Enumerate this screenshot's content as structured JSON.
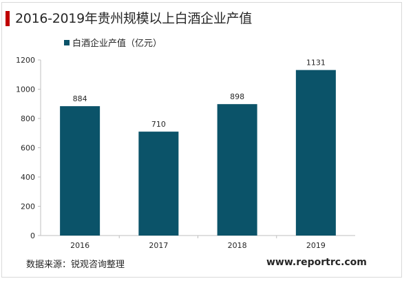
{
  "page": {
    "title": "2016-2019年贵州规模以上白酒企业产值",
    "source": "数据来源：锐观咨询整理",
    "website": "www.reportrc.com"
  },
  "colors": {
    "accent": "#c00000",
    "bar": "#0b5369",
    "axis": "#bfbfbf",
    "text": "#262626"
  },
  "chart_data": {
    "type": "bar",
    "title": "2016-2019年贵州规模以上白酒企业产值",
    "categories": [
      "2016",
      "2017",
      "2018",
      "2019"
    ],
    "series": [
      {
        "name": "白酒企业产值（亿元）",
        "values": [
          884,
          710,
          898,
          1131
        ]
      }
    ],
    "data_labels": [
      "884",
      "710",
      "898",
      "1131"
    ],
    "y_ticks": [
      0,
      200,
      400,
      600,
      800,
      1000,
      1200
    ],
    "ylim": [
      0,
      1200
    ],
    "xlabel": "",
    "ylabel": "",
    "grid": false,
    "legend_position": "top-left"
  }
}
